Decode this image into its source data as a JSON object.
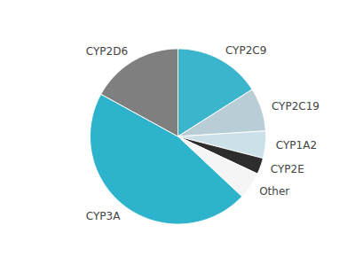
{
  "chart_data": {
    "type": "pie",
    "categories": [
      "CYP2C9",
      "CYP2C19",
      "CYP1A2",
      "CYP2E",
      "Other",
      "CYP3A",
      "CYP2D6"
    ],
    "values": [
      16,
      8,
      5,
      3,
      5,
      46,
      17
    ],
    "colors": [
      "#3ab5cc",
      "#b8cdd5",
      "#cce0ea",
      "#2d2d2d",
      "#f5f5f5",
      "#2db3cc",
      "#7f7f7f"
    ]
  }
}
